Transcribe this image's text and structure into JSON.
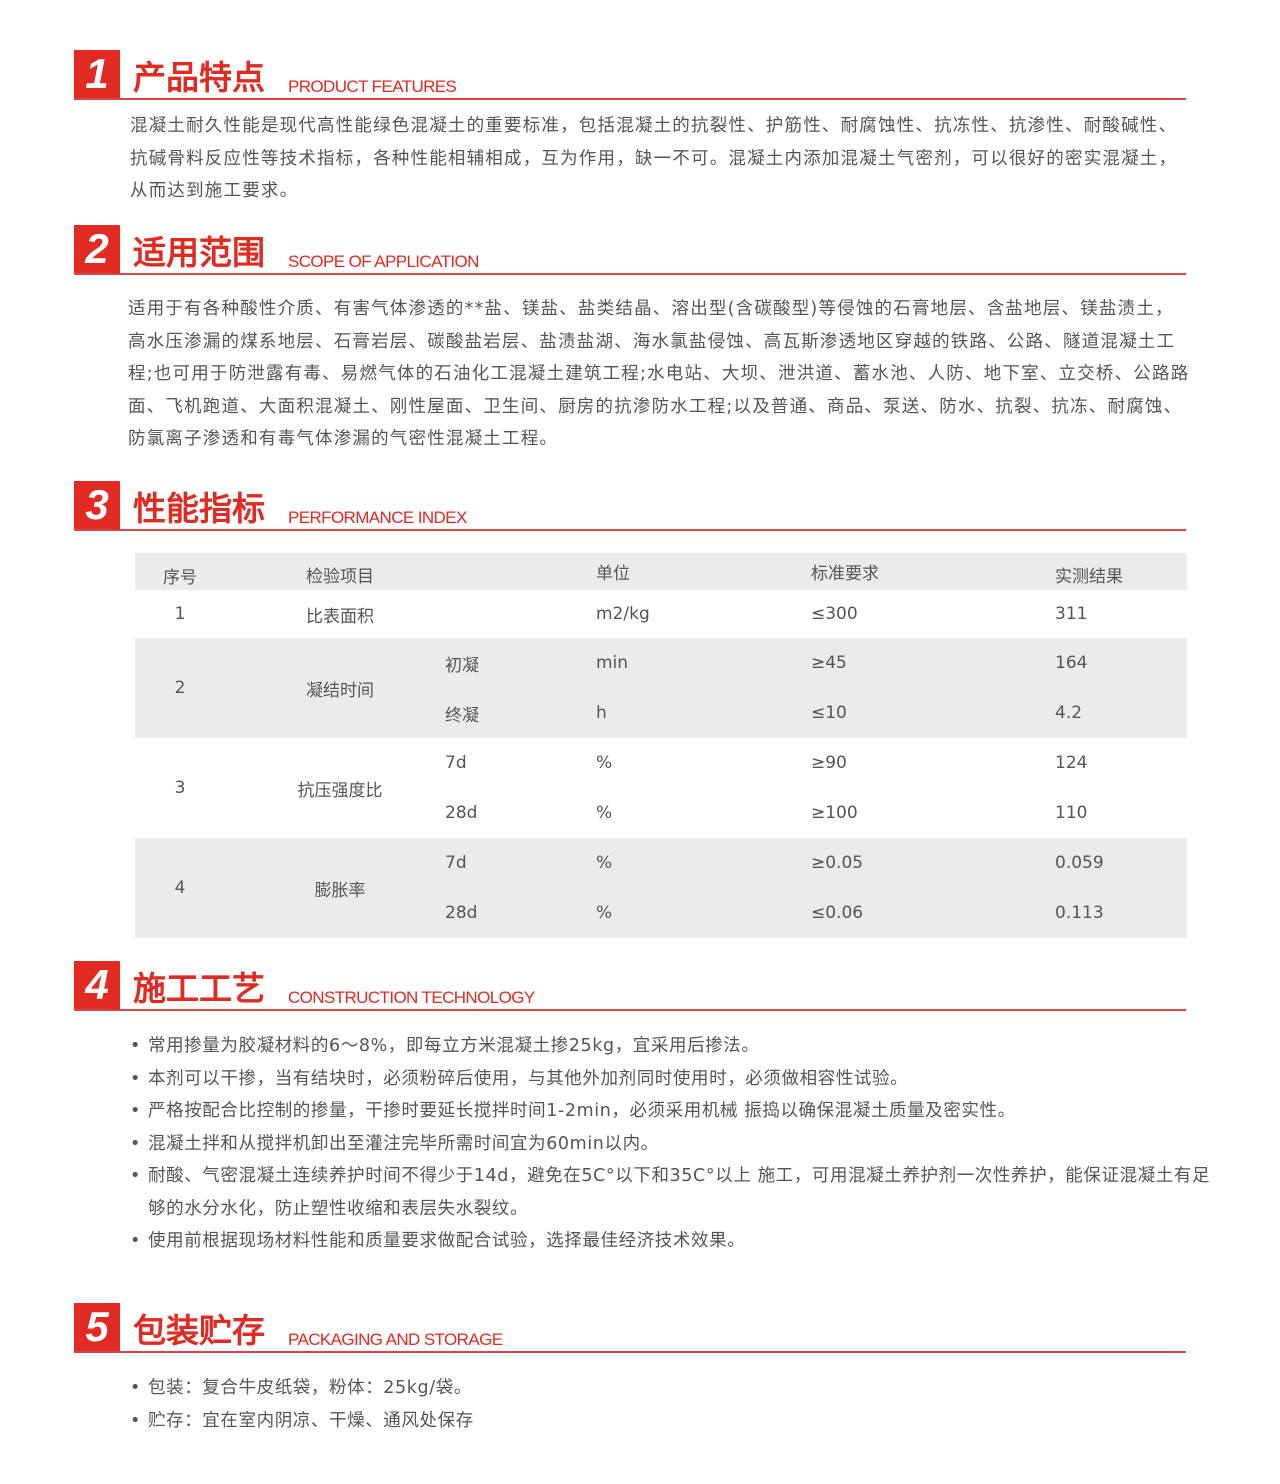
{
  "accent_color": "#e02a22",
  "sections": [
    {
      "num": "1",
      "title": "产品特点",
      "en": "PRODUCT FEATURES",
      "text": "混凝土耐久性能是现代高性能绿色混凝土的重要标准，包括混凝土的抗裂性、护筋性、耐腐蚀性、抗冻性、抗渗性、耐酸碱性、抗碱骨料反应性等技术指标，各种性能相辅相成，互为作用，缺一不可。混凝土内添加混凝土气密剂，可以很好的密实混凝土，从而达到施工要求。"
    },
    {
      "num": "2",
      "title": "适用范围",
      "en": "SCOPE OF APPLICATION",
      "text": "适用于有各种酸性介质、有害气体渗透的**盐、镁盐、盐类结晶、溶出型(含碳酸型)等侵蚀的石膏地层、含盐地层、镁盐渍土，高水压渗漏的煤系地层、石膏岩层、碳酸盐岩层、盐渍盐湖、海水氯盐侵蚀、高瓦斯渗透地区穿越的铁路、公路、隧道混凝土工程;也可用于防泄露有毒、易燃气体的石油化工混凝土建筑工程;水电站、大坝、泄洪道、蓄水池、人防、地下室、立交桥、公路路面、飞机跑道、大面积混凝土、刚性屋面、卫生间、厨房的抗渗防水工程;以及普通、商品、泵送、防水、抗裂、抗冻、耐腐蚀、防氯离子渗透和有毒气体渗漏的气密性混凝土工程。"
    },
    {
      "num": "3",
      "title": "性能指标",
      "en": "PERFORMANCE INDEX"
    },
    {
      "num": "4",
      "title": "施工工艺",
      "en": "CONSTRUCTION TECHNOLOGY",
      "items": [
        "常用掺量为胶凝材料的6～8%，即每立方米混凝土掺25kg，宜采用后掺法。",
        "本剂可以干掺，当有结块时，必须粉碎后使用，与其他外加剂同时使用时，必须做相容性试验。",
        "严格按配合比控制的掺量，干掺时要延长搅拌时间1-2min，必须采用机械 振捣以确保混凝土质量及密实性。",
        "混凝土拌和从搅拌机卸出至灌注完毕所需时间宜为60min以内。",
        "耐酸、气密混凝土连续养护时间不得少于14d，避免在5C°以下和35C°以上 施工，可用混凝土养护剂一次性养护，能保证混凝土有足够的水分水化，防止塑性收缩和表层失水裂纹。",
        "使用前根据现场材料性能和质量要求做配合试验，选择最佳经济技术效果。"
      ]
    },
    {
      "num": "5",
      "title": "包装贮存",
      "en": "PACKAGING AND STORAGE",
      "items": [
        "包装：复合牛皮纸袋，粉体：25kg/袋。",
        "贮存：宜在室内阴凉、干燥、通风处保存"
      ]
    }
  ],
  "table": {
    "headers": [
      "序号",
      "检验项目",
      "单位",
      "标准要求",
      "实测结果"
    ],
    "rows": [
      {
        "seq": "1",
        "item": "比表面积",
        "sub": [
          {
            "name": "",
            "unit": "m2/kg",
            "std": "≤300",
            "result": "311"
          }
        ]
      },
      {
        "seq": "2",
        "item": "凝结时间",
        "sub": [
          {
            "name": "初凝",
            "unit": "min",
            "std": "≥45",
            "result": "164"
          },
          {
            "name": "终凝",
            "unit": "h",
            "std": "≤10",
            "result": "4.2"
          }
        ]
      },
      {
        "seq": "3",
        "item": "抗压强度比",
        "sub": [
          {
            "name": "7d",
            "unit": "%",
            "std": "≥90",
            "result": "124"
          },
          {
            "name": "28d",
            "unit": "%",
            "std": "≥100",
            "result": "110"
          }
        ]
      },
      {
        "seq": "4",
        "item": "膨胀率",
        "sub": [
          {
            "name": "7d",
            "unit": "%",
            "std": "≥0.05",
            "result": "0.059"
          },
          {
            "name": "28d",
            "unit": "%",
            "std": "≤0.06",
            "result": "0.113"
          }
        ]
      }
    ]
  },
  "bullet": "•"
}
